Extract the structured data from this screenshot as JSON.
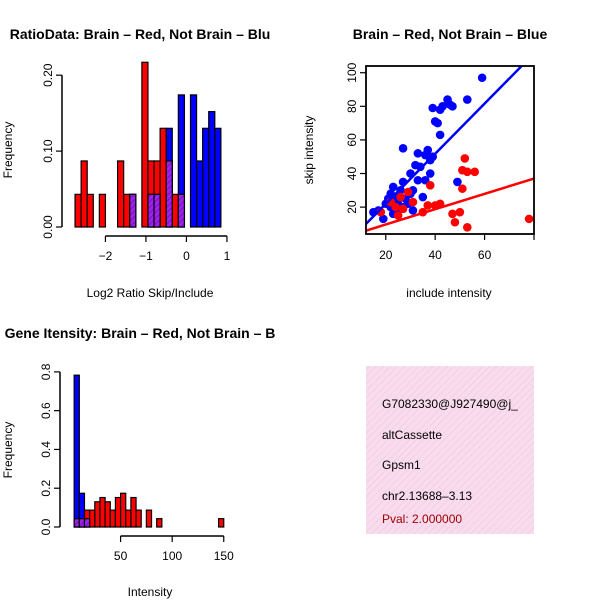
{
  "colors": {
    "brain": "#ff0000",
    "not_brain": "#0000ff",
    "overlap": "#a020f0",
    "info_bg": "#f8dcee"
  },
  "chart_data": [
    {
      "id": "ratio-hist",
      "type": "bar",
      "title": "RatioData: Brain – Red, Not Brain – Blu",
      "xlabel": "Log2 Ratio Skip/Include",
      "ylabel": "Frequency",
      "xlim": [
        -2.85,
        1.1
      ],
      "ylim": [
        0,
        0.22
      ],
      "xticks": [
        -2,
        -1,
        0,
        1
      ],
      "xtick_labels": [
        "−2",
        "−1",
        "0",
        "1"
      ],
      "yticks": [
        0.0,
        0.1,
        0.2
      ],
      "ytick_labels": [
        "0.00",
        "0.10",
        "0.20"
      ],
      "bin_width": 0.15,
      "series": [
        {
          "name": "Brain",
          "bins": [
            {
              "x0": -2.75,
              "value": 0.043
            },
            {
              "x0": -2.6,
              "value": 0.087
            },
            {
              "x0": -2.45,
              "value": 0.043
            },
            {
              "x0": -2.15,
              "value": 0.043
            },
            {
              "x0": -1.7,
              "value": 0.087
            },
            {
              "x0": -1.55,
              "value": 0.043
            },
            {
              "x0": -1.4,
              "value": 0.043
            },
            {
              "x0": -1.1,
              "value": 0.217
            },
            {
              "x0": -0.95,
              "value": 0.087
            },
            {
              "x0": -0.8,
              "value": 0.087
            },
            {
              "x0": -0.65,
              "value": 0.13
            },
            {
              "x0": -0.5,
              "value": 0.087
            },
            {
              "x0": -0.35,
              "value": 0.043
            },
            {
              "x0": -0.2,
              "value": 0.043
            }
          ]
        },
        {
          "name": "Not Brain",
          "bins": [
            {
              "x0": -1.4,
              "value": 0.043
            },
            {
              "x0": -0.95,
              "value": 0.043
            },
            {
              "x0": -0.8,
              "value": 0.043
            },
            {
              "x0": -0.5,
              "value": 0.13
            },
            {
              "x0": -0.2,
              "value": 0.174
            },
            {
              "x0": 0.1,
              "value": 0.174
            },
            {
              "x0": 0.25,
              "value": 0.087
            },
            {
              "x0": 0.4,
              "value": 0.13
            },
            {
              "x0": 0.55,
              "value": 0.152
            },
            {
              "x0": 0.7,
              "value": 0.13
            }
          ]
        }
      ]
    },
    {
      "id": "scatter",
      "type": "scatter",
      "title": "Brain – Red, Not Brain – Blue",
      "xlabel": "include intensity",
      "ylabel": "skip intensity",
      "xlim": [
        12,
        80
      ],
      "ylim": [
        4,
        104
      ],
      "xticks": [
        20,
        40,
        60
      ],
      "yticks": [
        20,
        40,
        60,
        80,
        100
      ],
      "series": [
        {
          "name": "Not Brain",
          "points": [
            [
              15,
              17
            ],
            [
              17,
              18
            ],
            [
              19,
              13
            ],
            [
              20,
              22
            ],
            [
              21,
              25
            ],
            [
              22,
              28
            ],
            [
              22,
              20
            ],
            [
              23,
              16
            ],
            [
              23,
              32
            ],
            [
              24,
              26
            ],
            [
              25,
              22
            ],
            [
              25,
              18
            ],
            [
              26,
              30
            ],
            [
              27,
              20
            ],
            [
              27,
              35
            ],
            [
              27,
              55
            ],
            [
              28,
              25
            ],
            [
              29,
              22
            ],
            [
              30,
              28
            ],
            [
              30,
              40
            ],
            [
              31,
              30
            ],
            [
              31,
              18
            ],
            [
              32,
              45
            ],
            [
              33,
              36
            ],
            [
              33,
              52
            ],
            [
              34,
              44
            ],
            [
              35,
              26
            ],
            [
              36,
              51
            ],
            [
              36,
              36
            ],
            [
              37,
              54
            ],
            [
              38,
              40
            ],
            [
              38,
              48
            ],
            [
              39,
              50
            ],
            [
              39,
              79
            ],
            [
              40,
              71
            ],
            [
              41,
              70
            ],
            [
              42,
              63
            ],
            [
              42,
              78
            ],
            [
              43,
              80
            ],
            [
              45,
              84
            ],
            [
              46,
              81
            ],
            [
              47,
              80
            ],
            [
              49,
              35
            ],
            [
              53,
              84
            ],
            [
              59,
              97
            ]
          ]
        },
        {
          "name": "Brain",
          "points": [
            [
              18,
              17
            ],
            [
              22,
              23
            ],
            [
              24,
              20
            ],
            [
              25,
              15
            ],
            [
              26,
              26
            ],
            [
              27,
              19
            ],
            [
              29,
              29
            ],
            [
              31,
              23
            ],
            [
              35,
              17
            ],
            [
              37,
              21
            ],
            [
              38,
              33
            ],
            [
              40,
              21
            ],
            [
              42,
              22
            ],
            [
              47,
              16
            ],
            [
              48,
              11
            ],
            [
              50,
              17
            ],
            [
              51,
              31
            ],
            [
              51,
              42
            ],
            [
              52,
              49
            ],
            [
              53,
              8
            ],
            [
              53,
              41
            ],
            [
              56,
              41
            ],
            [
              78,
              13
            ]
          ]
        }
      ],
      "fit_lines": [
        {
          "name": "Not Brain",
          "x": [
            12,
            75
          ],
          "y": [
            10,
            104
          ]
        },
        {
          "name": "Brain",
          "x": [
            12,
            80
          ],
          "y": [
            6,
            37
          ]
        }
      ]
    },
    {
      "id": "intensity-hist",
      "type": "bar",
      "title": "Gene Itensity: Brain – Red, Not Brain – B",
      "xlabel": "Intensity",
      "ylabel": "Frequency",
      "xlim": [
        0,
        158
      ],
      "ylim": [
        0,
        0.82
      ],
      "xticks": [
        50,
        100,
        150
      ],
      "yticks": [
        0.0,
        0.2,
        0.4,
        0.6,
        0.8
      ],
      "ytick_labels": [
        "0.0",
        "0.2",
        "0.4",
        "0.6",
        "0.8"
      ],
      "bin_width": 5,
      "series": [
        {
          "name": "Brain",
          "bins": [
            {
              "x0": 5,
              "value": 0.043
            },
            {
              "x0": 10,
              "value": 0.043
            },
            {
              "x0": 15,
              "value": 0.087
            },
            {
              "x0": 20,
              "value": 0.087
            },
            {
              "x0": 25,
              "value": 0.13
            },
            {
              "x0": 30,
              "value": 0.152
            },
            {
              "x0": 35,
              "value": 0.13
            },
            {
              "x0": 40,
              "value": 0.087
            },
            {
              "x0": 45,
              "value": 0.152
            },
            {
              "x0": 50,
              "value": 0.174
            },
            {
              "x0": 55,
              "value": 0.087
            },
            {
              "x0": 60,
              "value": 0.152
            },
            {
              "x0": 65,
              "value": 0.087
            },
            {
              "x0": 75,
              "value": 0.087
            },
            {
              "x0": 85,
              "value": 0.043
            },
            {
              "x0": 145,
              "value": 0.043
            }
          ]
        },
        {
          "name": "Not Brain",
          "bins": [
            {
              "x0": 5,
              "value": 0.783
            },
            {
              "x0": 10,
              "value": 0.174
            },
            {
              "x0": 15,
              "value": 0.043
            }
          ]
        }
      ]
    }
  ],
  "info": {
    "id": "G7082330@J927490@j_",
    "event_type": "altCassette",
    "gene": "Gpsm1",
    "location": "chr2.13688–3.13",
    "pval": "Pval: 2.000000"
  }
}
